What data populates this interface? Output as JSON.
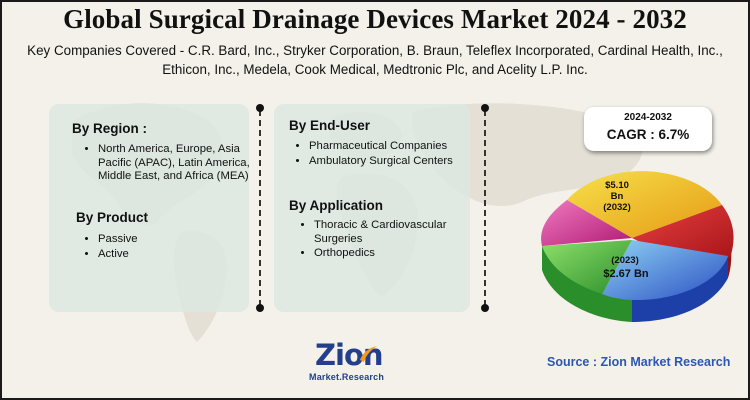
{
  "title": "Global Surgical Drainage Devices Market 2024 - 2032",
  "subtitle": "Key Companies Covered - C.R. Bard, Inc., Stryker Corporation, B. Braun, Teleflex Incorporated, Cardinal Health, Inc., Ethicon, Inc., Medela, Cook Medical, Medtronic Plc, and Acelity L.P. Inc.",
  "region": {
    "heading": "By Region :",
    "items": [
      "North America, Europe, Asia Pacific (APAC), Latin America, Middle East, and Africa (MEA)"
    ]
  },
  "product": {
    "heading": "By Product",
    "items": [
      "Passive",
      "Active"
    ]
  },
  "end_user": {
    "heading": "By End-User",
    "items": [
      "Pharmaceutical Companies",
      "Ambulatory Surgical Centers"
    ]
  },
  "application": {
    "heading": "By Application",
    "items": [
      "Thoracic & Cardiovascular Surgeries",
      "Orthopedics"
    ]
  },
  "cagr": {
    "years": "2024-2032",
    "label": "CAGR : 6.7%"
  },
  "market_2032": {
    "value": "$5.10",
    "unit": "Bn",
    "year": "(2032)"
  },
  "market_2023": {
    "year": "(2023)",
    "value": "$2.67 Bn"
  },
  "logo": {
    "name": "Zion",
    "sub": "Market.Research"
  },
  "source": "Source : Zion Market Research",
  "colors": {
    "panel": "#dce8e0",
    "pie_yellow": "#f2c41b",
    "pie_red": "#d8282a",
    "pie_blue": "#2e5fd0",
    "pie_green": "#3fae3a",
    "pie_magenta": "#d42a8e",
    "source_text": "#2c57b0"
  },
  "icons": {
    "background": "world-map-icon",
    "logo_swoosh": "swoosh-icon"
  }
}
